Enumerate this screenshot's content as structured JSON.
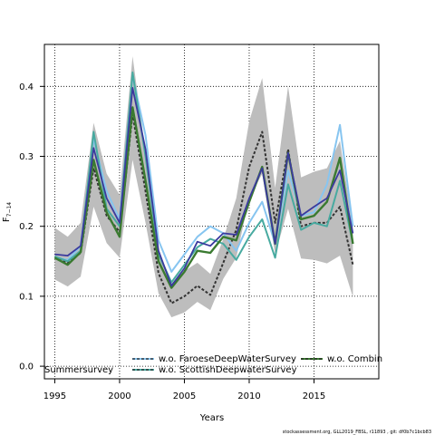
{
  "chart_data": {
    "type": "line",
    "xlabel": "Years",
    "ylabel_main": "F",
    "ylabel_sub": "7−14",
    "xlim": [
      1994.2,
      2020.0
    ],
    "ylim": [
      -0.018,
      0.46
    ],
    "x_ticks": [
      1995,
      2000,
      2005,
      2010,
      2015
    ],
    "y_ticks": [
      0.0,
      0.1,
      0.2,
      0.3,
      0.4
    ],
    "y_tick_labels": [
      "0.0",
      "0.1",
      "0.2",
      "0.3",
      "0.4"
    ],
    "grid": true,
    "x": [
      1995,
      1996,
      1997,
      1998,
      1999,
      2000,
      2001,
      2002,
      2003,
      2004,
      2005,
      2006,
      2007,
      2008,
      2009,
      2010,
      2011,
      2012,
      2013,
      2014,
      2015,
      2016,
      2017,
      2018
    ],
    "band": {
      "upper": [
        0.198,
        0.185,
        0.205,
        0.348,
        0.275,
        0.245,
        0.443,
        0.305,
        0.165,
        0.118,
        0.136,
        0.148,
        0.132,
        0.182,
        0.24,
        0.35,
        0.412,
        0.255,
        0.4,
        0.27,
        0.278,
        0.283,
        0.322,
        0.2
      ],
      "lower": [
        0.124,
        0.114,
        0.128,
        0.228,
        0.176,
        0.155,
        0.295,
        0.205,
        0.104,
        0.07,
        0.077,
        0.092,
        0.08,
        0.125,
        0.155,
        0.24,
        0.275,
        0.16,
        0.225,
        0.154,
        0.152,
        0.147,
        0.158,
        0.099
      ]
    },
    "series": [
      {
        "name": "",
        "color": "#333333",
        "dash": "3,2",
        "width": 2,
        "values": [
          0.156,
          0.148,
          0.162,
          0.283,
          0.215,
          0.192,
          0.36,
          0.25,
          0.133,
          0.09,
          0.1,
          0.115,
          0.102,
          0.148,
          0.195,
          0.285,
          0.335,
          0.205,
          0.31,
          0.2,
          0.205,
          0.205,
          0.228,
          0.145
        ]
      },
      {
        "name": "w.o. FaroeseDeepWaterSurvey",
        "color": "#87c5f0",
        "dash": "",
        "width": 2,
        "values": [
          0.156,
          0.152,
          0.172,
          0.325,
          0.25,
          0.21,
          0.415,
          0.33,
          0.18,
          0.135,
          0.16,
          0.185,
          0.2,
          0.19,
          0.165,
          0.205,
          0.235,
          0.175,
          0.28,
          0.215,
          0.22,
          0.26,
          0.345,
          0.2
        ]
      },
      {
        "name": "w.o. ScottishDeepwaterSurvey",
        "color": "#48aaa0",
        "dash": "",
        "width": 2,
        "values": [
          0.157,
          0.15,
          0.165,
          0.335,
          0.225,
          0.2,
          0.42,
          0.3,
          0.16,
          0.12,
          0.145,
          0.17,
          0.182,
          0.175,
          0.152,
          0.185,
          0.21,
          0.155,
          0.26,
          0.195,
          0.205,
          0.2,
          0.265,
          0.175
        ]
      },
      {
        "name": "w.o. Combined",
        "color": "#3a7a30",
        "dash": "",
        "width": 2.4,
        "values": [
          0.155,
          0.145,
          0.163,
          0.295,
          0.22,
          0.185,
          0.37,
          0.265,
          0.15,
          0.112,
          0.135,
          0.165,
          0.162,
          0.185,
          0.18,
          0.235,
          0.285,
          0.175,
          0.305,
          0.21,
          0.215,
          0.235,
          0.298,
          0.175
        ]
      },
      {
        "name": "Summersurvey",
        "color": "#3b3a9e",
        "dash": "",
        "width": 1.8,
        "values": [
          0.16,
          0.158,
          0.172,
          0.312,
          0.24,
          0.205,
          0.398,
          0.31,
          0.165,
          0.115,
          0.14,
          0.178,
          0.172,
          0.19,
          0.188,
          0.24,
          0.283,
          0.175,
          0.305,
          0.215,
          0.228,
          0.24,
          0.28,
          0.19
        ]
      }
    ],
    "legend": [
      {
        "label": "w.o. FaroeseDeepWaterSurvey",
        "color": "#87c5f0"
      },
      {
        "label": "w.o. Combin",
        "color": "#3a7a30"
      },
      {
        "label": "w.o. ScottishDeepwaterSurvey",
        "color": "#48aaa0"
      },
      {
        "label": "Summersurvey",
        "color": "#3b3a9e"
      }
    ],
    "band_color": "#bdbdbd",
    "footer": "stockassessment.org, GLL2019_FBSL, r11893 , git: df0b7c1bcb83"
  }
}
